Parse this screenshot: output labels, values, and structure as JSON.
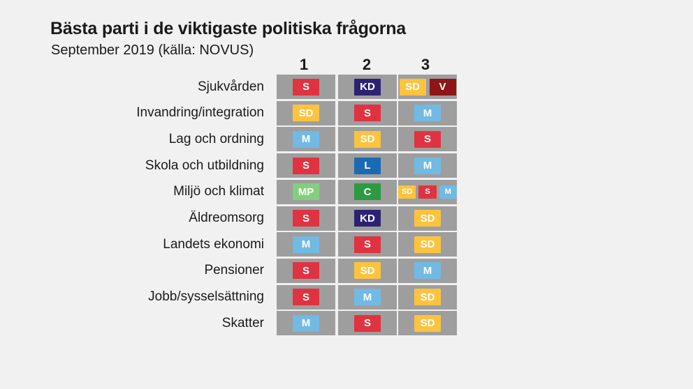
{
  "header": {
    "title": "Bästa parti i de viktigaste politiska frågorna",
    "subtitle": "September 2019 (källa: NOVUS)"
  },
  "party_colors": {
    "S": "#e03341",
    "SD": "#fcc33f",
    "KD": "#2c2273",
    "V": "#8e1616",
    "M": "#72b9e4",
    "L": "#1c6ab3",
    "MP": "#83cf7f",
    "C": "#2c9a40"
  },
  "chart_data": {
    "type": "table",
    "columns": [
      "1",
      "2",
      "3"
    ],
    "rows": [
      {
        "label": "Sjukvården",
        "cells": [
          [
            "S"
          ],
          [
            "KD"
          ],
          [
            "SD",
            "V"
          ]
        ]
      },
      {
        "label": "Invandring/integration",
        "cells": [
          [
            "SD"
          ],
          [
            "S"
          ],
          [
            "M"
          ]
        ]
      },
      {
        "label": "Lag och ordning",
        "cells": [
          [
            "M"
          ],
          [
            "SD"
          ],
          [
            "S"
          ]
        ]
      },
      {
        "label": "Skola och utbildning",
        "cells": [
          [
            "S"
          ],
          [
            "L"
          ],
          [
            "M"
          ]
        ]
      },
      {
        "label": "Miljö och klimat",
        "cells": [
          [
            "MP"
          ],
          [
            "C"
          ],
          [
            "SD",
            "S",
            "M"
          ]
        ]
      },
      {
        "label": "Äldreomsorg",
        "cells": [
          [
            "S"
          ],
          [
            "KD"
          ],
          [
            "SD"
          ]
        ]
      },
      {
        "label": "Landets ekonomi",
        "cells": [
          [
            "M"
          ],
          [
            "S"
          ],
          [
            "SD"
          ]
        ]
      },
      {
        "label": "Pensioner",
        "cells": [
          [
            "S"
          ],
          [
            "SD"
          ],
          [
            "M"
          ]
        ]
      },
      {
        "label": "Jobb/sysselsättning",
        "cells": [
          [
            "S"
          ],
          [
            "M"
          ],
          [
            "SD"
          ]
        ]
      },
      {
        "label": "Skatter",
        "cells": [
          [
            "M"
          ],
          [
            "S"
          ],
          [
            "SD"
          ]
        ]
      }
    ]
  }
}
